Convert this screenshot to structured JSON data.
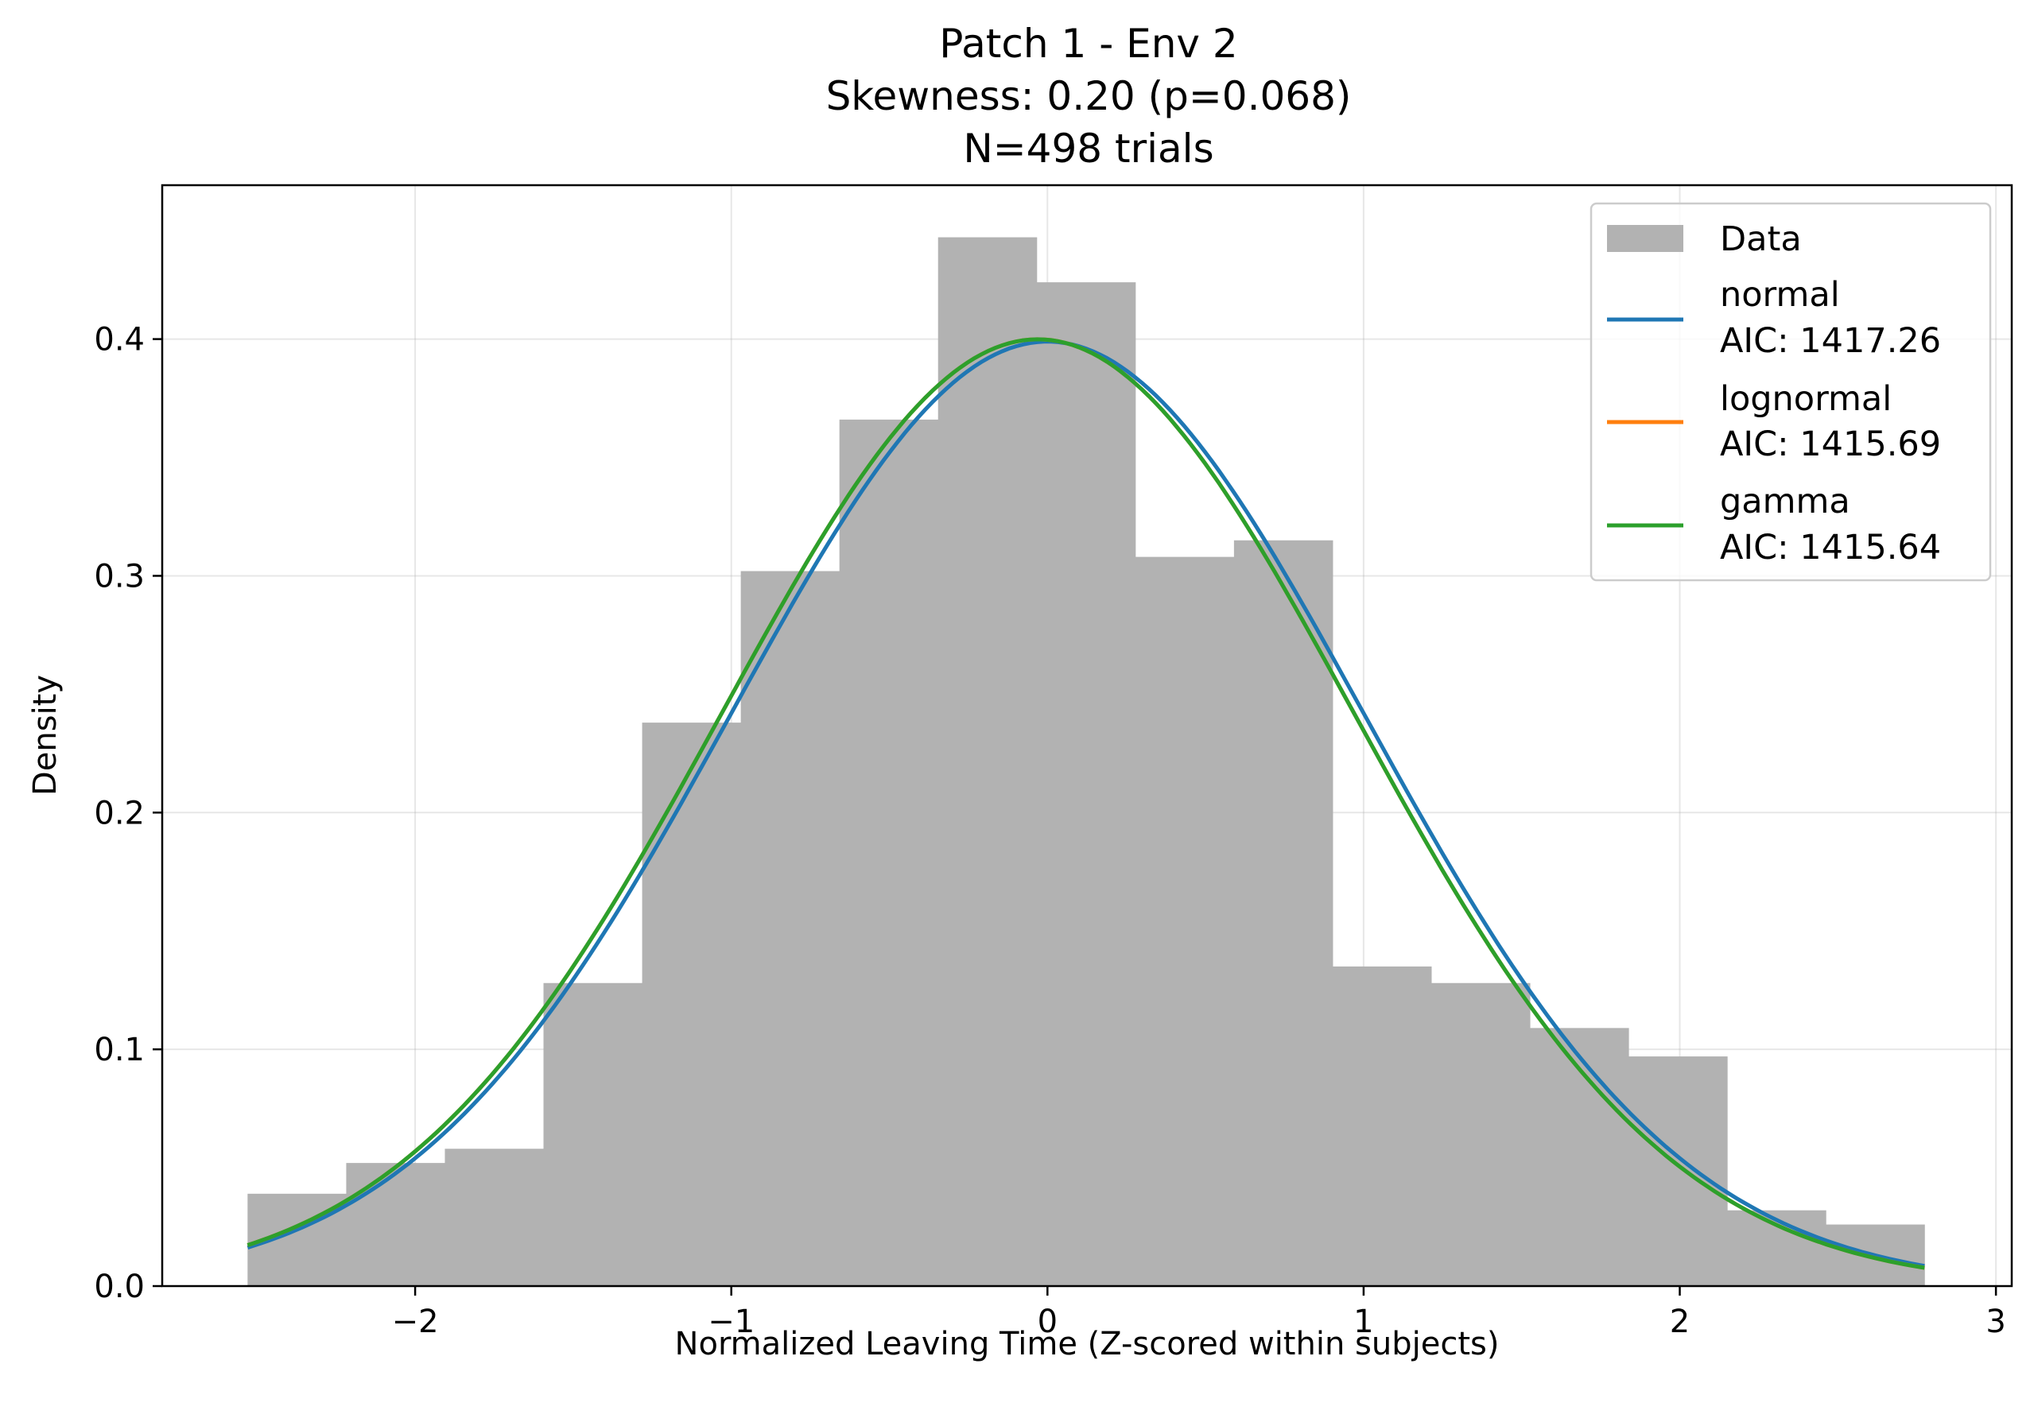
{
  "chart_data": {
    "type": "bar",
    "title_lines": [
      "Patch 1 - Env 2",
      "Skewness: 0.20 (p=0.068)",
      "N=498 trials"
    ],
    "xlabel": "Normalized Leaving Time (Z-scored within subjects)",
    "ylabel": "Density",
    "xlim": [
      -2.8,
      3.05
    ],
    "ylim": [
      0,
      0.465
    ],
    "xticks": [
      -2,
      -1,
      0,
      1,
      2,
      3
    ],
    "xtick_labels": [
      "−2",
      "−1",
      "0",
      "1",
      "2",
      "3"
    ],
    "yticks": [
      0.0,
      0.1,
      0.2,
      0.3,
      0.4
    ],
    "ytick_labels": [
      "0.0",
      "0.1",
      "0.2",
      "0.3",
      "0.4"
    ],
    "grid": true,
    "legend_placement": "top-right",
    "histogram": {
      "name": "Data",
      "color": "#b2b2b2",
      "bin_edges": [
        -2.53,
        -2.218,
        -1.906,
        -1.594,
        -1.282,
        -0.97,
        -0.658,
        -0.346,
        -0.034,
        0.278,
        0.59,
        0.902,
        1.214,
        1.526,
        1.838,
        2.15,
        2.462,
        2.774
      ],
      "densities": [
        0.039,
        0.052,
        0.058,
        0.128,
        0.238,
        0.302,
        0.366,
        0.443,
        0.424,
        0.308,
        0.315,
        0.135,
        0.128,
        0.109,
        0.097,
        0.032,
        0.026
      ]
    },
    "series": [
      {
        "name": "normal",
        "aic_label": "AIC: 1417.26",
        "color": "#1f77b4",
        "x_range": [
          -2.53,
          2.774
        ],
        "mean": 0.0,
        "sd": 1.0
      },
      {
        "name": "lognormal",
        "aic_label": "AIC: 1415.69",
        "color": "#ff7f0e",
        "x_range": [
          -2.53,
          2.774
        ],
        "mode": -0.1,
        "sd": 1.0,
        "skew": 0.2
      },
      {
        "name": "gamma",
        "aic_label": "AIC: 1415.64",
        "color": "#2ca02c",
        "x_range": [
          -2.53,
          2.774
        ],
        "mode": -0.1,
        "sd": 1.0,
        "skew": 0.2
      }
    ]
  }
}
